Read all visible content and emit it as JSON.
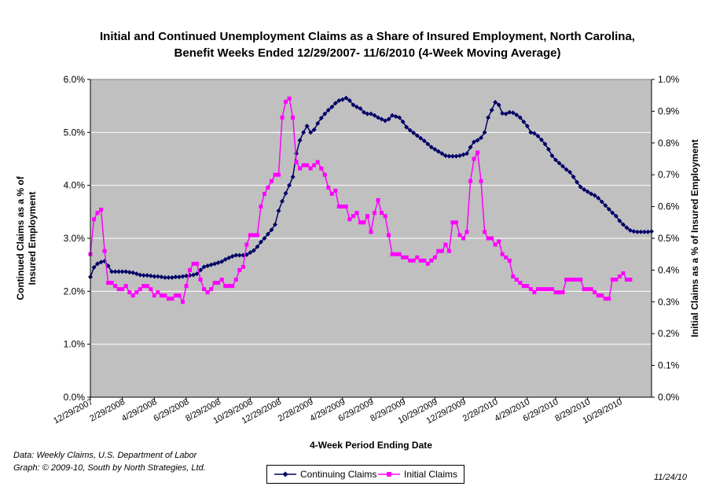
{
  "chart_data": {
    "type": "line",
    "title": "Initial and Continued Unemployment Claims as a Share of Insured Employment, North Carolina, Benefit Weeks Ended 12/29/2007- 11/6/2010 (4-Week Moving Average)",
    "xlabel": "4-Week Period Ending Date",
    "ylabel_left": "Continued Claims as a % of Insured Employment",
    "ylabel_right": "Initial Claims as a % of Insured Employment",
    "y_left_ticks": [
      "0.0%",
      "1.0%",
      "2.0%",
      "3.0%",
      "4.0%",
      "5.0%",
      "6.0%"
    ],
    "y_left_lim": [
      0,
      6
    ],
    "y_right_ticks": [
      "0.0%",
      "0.1%",
      "0.2%",
      "0.3%",
      "0.4%",
      "0.5%",
      "0.6%",
      "0.7%",
      "0.8%",
      "0.9%",
      "1.0%"
    ],
    "y_right_lim": [
      0,
      1
    ],
    "x_ticks": [
      "12/29/2007",
      "2/29/2008",
      "4/29/2008",
      "6/29/2008",
      "8/29/2008",
      "10/29/2008",
      "12/29/2008",
      "2/28/2009",
      "4/29/2009",
      "6/29/2009",
      "8/29/2009",
      "10/29/2009",
      "12/29/2009",
      "2/28/2010",
      "4/29/2010",
      "6/29/2010",
      "8/29/2010",
      "10/29/2010"
    ],
    "x_tick_index": [
      0,
      9,
      18,
      27,
      36,
      45,
      53,
      62,
      71,
      79,
      88,
      97,
      105,
      114,
      123,
      131,
      140,
      149
    ],
    "grid": true,
    "legend_position": "bottom",
    "series": [
      {
        "name": "Continuing Claims",
        "axis": "left",
        "color": "#000066",
        "marker": "diamond",
        "values": [
          2.27,
          2.45,
          2.52,
          2.55,
          2.57,
          2.48,
          2.37,
          2.37,
          2.37,
          2.37,
          2.37,
          2.36,
          2.35,
          2.33,
          2.31,
          2.3,
          2.3,
          2.29,
          2.28,
          2.28,
          2.27,
          2.26,
          2.26,
          2.26,
          2.27,
          2.27,
          2.28,
          2.29,
          2.3,
          2.31,
          2.33,
          2.4,
          2.46,
          2.48,
          2.5,
          2.52,
          2.54,
          2.56,
          2.6,
          2.63,
          2.66,
          2.68,
          2.68,
          2.68,
          2.69,
          2.73,
          2.77,
          2.84,
          2.93,
          3.0,
          3.08,
          3.16,
          3.26,
          3.52,
          3.7,
          3.85,
          4.0,
          4.16,
          4.6,
          4.85,
          5.0,
          5.12,
          5.0,
          5.05,
          5.17,
          5.27,
          5.35,
          5.42,
          5.48,
          5.55,
          5.6,
          5.62,
          5.65,
          5.6,
          5.52,
          5.48,
          5.45,
          5.38,
          5.35,
          5.35,
          5.32,
          5.28,
          5.25,
          5.22,
          5.25,
          5.32,
          5.3,
          5.28,
          5.2,
          5.1,
          5.04,
          4.99,
          4.94,
          4.89,
          4.84,
          4.78,
          4.72,
          4.68,
          4.64,
          4.6,
          4.56,
          4.55,
          4.55,
          4.55,
          4.56,
          4.58,
          4.6,
          4.72,
          4.82,
          4.85,
          4.9,
          5.0,
          5.28,
          5.42,
          5.57,
          5.52,
          5.36,
          5.35,
          5.38,
          5.37,
          5.33,
          5.28,
          5.2,
          5.12,
          5.0,
          4.98,
          4.93,
          4.86,
          4.78,
          4.68,
          4.56,
          4.48,
          4.42,
          4.36,
          4.3,
          4.25,
          4.16,
          4.06,
          3.97,
          3.92,
          3.88,
          3.84,
          3.81,
          3.76,
          3.69,
          3.62,
          3.55,
          3.48,
          3.42,
          3.33,
          3.26,
          3.2,
          3.15,
          3.13,
          3.12,
          3.12,
          3.12,
          3.12,
          3.13
        ]
      },
      {
        "name": "Initial Claims",
        "axis": "right",
        "color": "#ff00ff",
        "marker": "square",
        "values": [
          0.45,
          0.56,
          0.58,
          0.59,
          0.46,
          0.36,
          0.36,
          0.35,
          0.34,
          0.34,
          0.35,
          0.33,
          0.32,
          0.33,
          0.34,
          0.35,
          0.35,
          0.34,
          0.32,
          0.33,
          0.32,
          0.32,
          0.31,
          0.31,
          0.32,
          0.32,
          0.3,
          0.35,
          0.4,
          0.42,
          0.42,
          0.37,
          0.34,
          0.33,
          0.34,
          0.36,
          0.36,
          0.37,
          0.35,
          0.35,
          0.35,
          0.37,
          0.4,
          0.41,
          0.48,
          0.51,
          0.51,
          0.51,
          0.6,
          0.64,
          0.66,
          0.68,
          0.7,
          0.7,
          0.88,
          0.93,
          0.94,
          0.88,
          0.74,
          0.72,
          0.73,
          0.73,
          0.72,
          0.73,
          0.74,
          0.72,
          0.7,
          0.66,
          0.64,
          0.65,
          0.6,
          0.6,
          0.6,
          0.56,
          0.57,
          0.58,
          0.55,
          0.55,
          0.57,
          0.52,
          0.58,
          0.62,
          0.58,
          0.57,
          0.51,
          0.45,
          0.45,
          0.45,
          0.44,
          0.44,
          0.43,
          0.43,
          0.44,
          0.43,
          0.43,
          0.42,
          0.43,
          0.44,
          0.46,
          0.46,
          0.48,
          0.46,
          0.55,
          0.55,
          0.51,
          0.5,
          0.52,
          0.68,
          0.75,
          0.77,
          0.68,
          0.52,
          0.5,
          0.5,
          0.48,
          0.49,
          0.45,
          0.44,
          0.43,
          0.38,
          0.37,
          0.36,
          0.35,
          0.35,
          0.34,
          0.33,
          0.34,
          0.34,
          0.34,
          0.34,
          0.34,
          0.33,
          0.33,
          0.33,
          0.37,
          0.37,
          0.37,
          0.37,
          0.37,
          0.34,
          0.34,
          0.34,
          0.33,
          0.32,
          0.32,
          0.31,
          0.31,
          0.37,
          0.37,
          0.38,
          0.39,
          0.37,
          0.37
        ]
      }
    ]
  },
  "footer": {
    "source_line1": "Data:  Weekly Claims, U.S. Department of Labor",
    "source_line2": "Graph: © 2009-10, South by North Strategies, Ltd.",
    "date": "11/24/10"
  }
}
